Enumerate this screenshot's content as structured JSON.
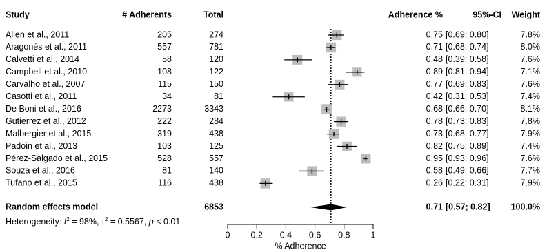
{
  "chart_data": {
    "type": "forest",
    "headers": {
      "study": "Study",
      "adherents": "# Adherents",
      "total": "Total",
      "estimate": "Adherence %",
      "ci": "95%-CI",
      "weight": "Weight"
    },
    "rows": [
      {
        "study": "Allen et al., 2011",
        "adherents": "205",
        "total": "274",
        "est": 0.75,
        "lo": 0.69,
        "hi": 0.8,
        "est_text": "0.75",
        "ci_text": "[0.69; 0.80]",
        "weight": "7.8%"
      },
      {
        "study": "Aragonés et al., 2011",
        "adherents": "557",
        "total": "781",
        "est": 0.71,
        "lo": 0.68,
        "hi": 0.74,
        "est_text": "0.71",
        "ci_text": "[0.68; 0.74]",
        "weight": "8.0%"
      },
      {
        "study": "Calvetti et al., 2014",
        "adherents": "58",
        "total": "120",
        "est": 0.48,
        "lo": 0.39,
        "hi": 0.58,
        "est_text": "0.48",
        "ci_text": "[0.39; 0.58]",
        "weight": "7.6%"
      },
      {
        "study": "Campbell et al., 2010",
        "adherents": "108",
        "total": "122",
        "est": 0.89,
        "lo": 0.81,
        "hi": 0.94,
        "est_text": "0.89",
        "ci_text": "[0.81; 0.94]",
        "weight": "7.1%"
      },
      {
        "study": "Carvalho et al., 2007",
        "adherents": "115",
        "total": "150",
        "est": 0.77,
        "lo": 0.69,
        "hi": 0.83,
        "est_text": "0.77",
        "ci_text": "[0.69; 0.83]",
        "weight": "7.6%"
      },
      {
        "study": "Casotti et al., 2011",
        "adherents": "34",
        "total": "81",
        "est": 0.42,
        "lo": 0.31,
        "hi": 0.53,
        "est_text": "0.42",
        "ci_text": "[0.31; 0.53]",
        "weight": "7.4%"
      },
      {
        "study": "De Boni et al., 2016",
        "adherents": "2273",
        "total": "3343",
        "est": 0.68,
        "lo": 0.66,
        "hi": 0.7,
        "est_text": "0.68",
        "ci_text": "[0.66; 0.70]",
        "weight": "8.1%"
      },
      {
        "study": "Gutierrez et al., 2012",
        "adherents": "222",
        "total": "284",
        "est": 0.78,
        "lo": 0.73,
        "hi": 0.83,
        "est_text": "0.78",
        "ci_text": "[0.73; 0.83]",
        "weight": "7.8%"
      },
      {
        "study": "Malbergier et al., 2015",
        "adherents": "319",
        "total": "438",
        "est": 0.73,
        "lo": 0.68,
        "hi": 0.77,
        "est_text": "0.73",
        "ci_text": "[0.68; 0.77]",
        "weight": "7.9%"
      },
      {
        "study": "Padoin et al., 2013",
        "adherents": "103",
        "total": "125",
        "est": 0.82,
        "lo": 0.75,
        "hi": 0.89,
        "est_text": "0.82",
        "ci_text": "[0.75; 0.89]",
        "weight": "7.4%"
      },
      {
        "study": "Pérez-Salgado et al., 2015",
        "adherents": "528",
        "total": "557",
        "est": 0.95,
        "lo": 0.93,
        "hi": 0.96,
        "est_text": "0.95",
        "ci_text": "[0.93; 0.96]",
        "weight": "7.6%"
      },
      {
        "study": "Souza et al., 2016",
        "adherents": "81",
        "total": "140",
        "est": 0.58,
        "lo": 0.49,
        "hi": 0.66,
        "est_text": "0.58",
        "ci_text": "[0.49; 0.66]",
        "weight": "7.7%"
      },
      {
        "study": "Tufano et al., 2015",
        "adherents": "116",
        "total": "438",
        "est": 0.26,
        "lo": 0.22,
        "hi": 0.31,
        "est_text": "0.26",
        "ci_text": "[0.22; 0.31]",
        "weight": "7.9%"
      }
    ],
    "summary": {
      "label": "Random effects model",
      "total": "6853",
      "est": 0.71,
      "lo": 0.57,
      "hi": 0.82,
      "est_text": "0.71",
      "ci_text": "[0.57; 0.82]",
      "weight": "100.0%"
    },
    "heterogeneity": {
      "prefix": "Heterogeneity: ",
      "i2_symbol": "I",
      "i2_sup": "2",
      "i2_value": " = 98%, ",
      "tau_symbol": "τ",
      "tau_sup": "2",
      "tau_value": " = 0.5567, ",
      "p_symbol": "p",
      "p_value": " < 0.01"
    },
    "x_axis": {
      "label": "% Adherence",
      "ticks": [
        0,
        0.2,
        0.4,
        0.6,
        0.8,
        1
      ],
      "tick_labels": [
        "0",
        "0.2",
        "0.4",
        "0.6",
        "0.8",
        "1"
      ],
      "xlim": [
        0,
        1
      ]
    },
    "reference_line": 0.71,
    "colors": {
      "box": "#bdbdbd",
      "lines": "#000000",
      "diamond": "#000000"
    }
  }
}
